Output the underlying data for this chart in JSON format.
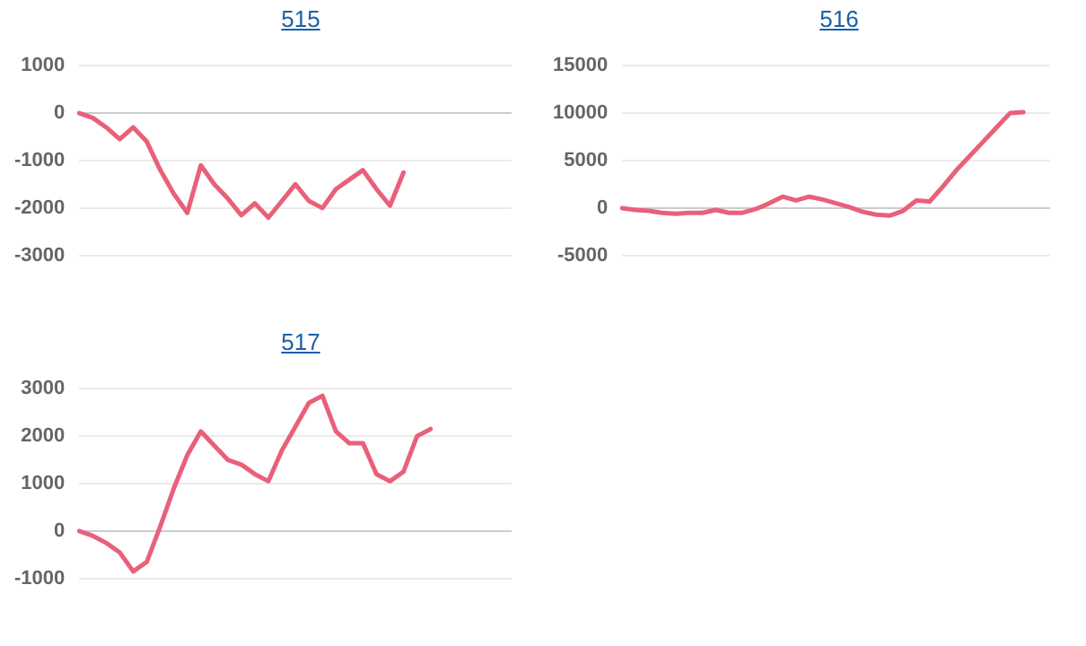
{
  "chart_data": [
    {
      "type": "line",
      "title": "515",
      "categories": [
        null,
        null,
        null,
        null,
        null,
        null,
        null,
        null,
        null,
        null,
        null,
        null,
        null,
        null,
        null,
        null,
        null,
        null,
        null,
        null,
        null,
        null,
        null,
        null,
        null,
        null,
        null,
        null,
        null,
        null,
        null,
        null,
        null
      ],
      "series": [
        {
          "color": "#e9607a",
          "values": [
            0,
            -100,
            -300,
            -550,
            -300,
            -600,
            -1200,
            -1700,
            -2100,
            -1100,
            -1500,
            -1800,
            -2150,
            -1900,
            -2200,
            -1850,
            -1500,
            -1850,
            -2000,
            -1600,
            -1400,
            -1200,
            -1600,
            -1950,
            -1250,
            null,
            null,
            null,
            null,
            null,
            null,
            null,
            null
          ]
        }
      ],
      "ylim": [
        -3000,
        1000
      ],
      "yticks": [
        -3000,
        -2000,
        -1000,
        0,
        1000
      ],
      "grid": "y",
      "tick_labels": "y",
      "legend": false,
      "marker": "none",
      "line_style": "solid"
    },
    {
      "type": "line",
      "title": "516",
      "categories": [
        null,
        null,
        null,
        null,
        null,
        null,
        null,
        null,
        null,
        null,
        null,
        null,
        null,
        null,
        null,
        null,
        null,
        null,
        null,
        null,
        null,
        null,
        null,
        null,
        null,
        null,
        null,
        null,
        null,
        null,
        null,
        null,
        null
      ],
      "series": [
        {
          "color": "#e9607a",
          "values": [
            0,
            -200,
            -300,
            -500,
            -600,
            -500,
            -500,
            -200,
            -500,
            -500,
            -100,
            500,
            1200,
            800,
            1200,
            900,
            500,
            100,
            -400,
            -700,
            -800,
            -300,
            800,
            700,
            2300,
            4000,
            5500,
            7000,
            8500,
            10000,
            10100,
            null,
            null
          ]
        }
      ],
      "ylim": [
        -5000,
        15000
      ],
      "yticks": [
        -5000,
        0,
        5000,
        10000,
        15000
      ],
      "grid": "y",
      "tick_labels": "y",
      "legend": false,
      "marker": "none",
      "line_style": "solid"
    },
    {
      "type": "line",
      "title": "517",
      "categories": [
        null,
        null,
        null,
        null,
        null,
        null,
        null,
        null,
        null,
        null,
        null,
        null,
        null,
        null,
        null,
        null,
        null,
        null,
        null,
        null,
        null,
        null,
        null,
        null,
        null,
        null,
        null,
        null,
        null,
        null,
        null,
        null,
        null
      ],
      "series": [
        {
          "color": "#e9607a",
          "values": [
            0,
            -100,
            -250,
            -450,
            -850,
            -650,
            100,
            900,
            1600,
            2100,
            1800,
            1500,
            1400,
            1200,
            1050,
            1700,
            2200,
            2700,
            2850,
            2100,
            1850,
            1850,
            1200,
            1050,
            1250,
            2000,
            2150,
            null,
            null,
            null,
            null,
            null,
            null
          ]
        }
      ],
      "ylim": [
        -1000,
        3000
      ],
      "yticks": [
        -1000,
        0,
        1000,
        2000,
        3000
      ],
      "grid": "y",
      "tick_labels": "y",
      "legend": false,
      "marker": "none",
      "line_style": "solid"
    }
  ]
}
